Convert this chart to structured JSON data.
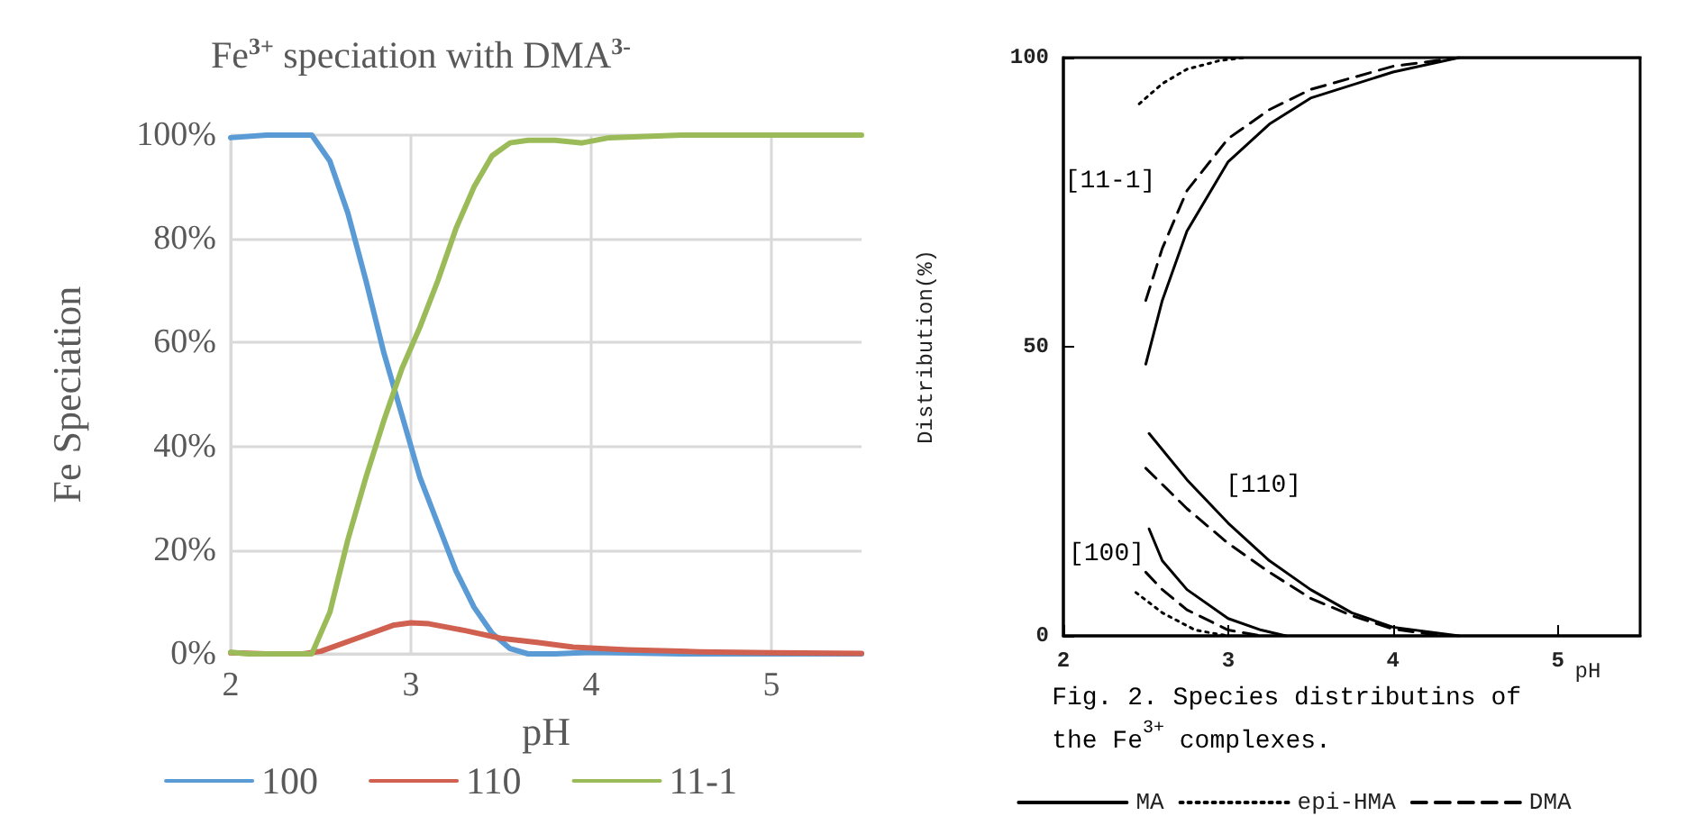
{
  "chart_data": [
    {
      "type": "line",
      "title": "Fe$^{3+}$ speciation with DMA$^{3-}$",
      "xlabel": "pH",
      "ylabel": "Fe Speciation",
      "xlim": [
        2,
        5.5
      ],
      "xticks": [
        2,
        3,
        4,
        5
      ],
      "ylim": [
        0,
        100
      ],
      "yticks": [
        {
          "value": 0,
          "label": "0%"
        },
        {
          "value": 20,
          "label": "20%"
        },
        {
          "value": 40,
          "label": "40%"
        },
        {
          "value": 60,
          "label": "60%"
        },
        {
          "value": 80,
          "label": "80%"
        },
        {
          "value": 100,
          "label": "100%"
        }
      ],
      "grid": true,
      "legend": "bottom",
      "marker": "none",
      "line_style": "solid",
      "series": [
        {
          "name": "100",
          "color": "#5b9bd5",
          "x": [
            2,
            2.2,
            2.45,
            2.55,
            2.65,
            2.75,
            2.85,
            2.95,
            3.05,
            3.15,
            3.25,
            3.35,
            3.45,
            3.55,
            3.65,
            3.8,
            4,
            4.5,
            5,
            5.5
          ],
          "values": [
            99.5,
            100,
            100,
            95,
            85,
            72,
            58,
            46,
            34,
            25,
            16,
            9,
            4,
            1,
            0,
            0,
            0.3,
            0,
            0,
            0
          ]
        },
        {
          "name": "110",
          "color": "#d0604f",
          "x": [
            2,
            2.2,
            2.4,
            2.5,
            2.7,
            2.9,
            3,
            3.1,
            3.3,
            3.5,
            3.7,
            3.9,
            4.2,
            4.6,
            5,
            5.5
          ],
          "values": [
            0.2,
            0,
            0,
            0.5,
            3,
            5.5,
            6,
            5.8,
            4.5,
            3,
            2.2,
            1.3,
            0.8,
            0.4,
            0.2,
            0.1
          ]
        },
        {
          "name": "11-1",
          "color": "#9bbb59",
          "x": [
            2,
            2.1,
            2.2,
            2.45,
            2.55,
            2.65,
            2.75,
            2.85,
            2.95,
            3.05,
            3.15,
            3.25,
            3.35,
            3.45,
            3.55,
            3.65,
            3.8,
            3.95,
            4.1,
            4.5,
            5,
            5.5
          ],
          "values": [
            0.3,
            0,
            0,
            0,
            8,
            22,
            34,
            45,
            55,
            63,
            72,
            82,
            90,
            96,
            98.5,
            99,
            99,
            98.5,
            99.5,
            100,
            100,
            100
          ]
        }
      ]
    },
    {
      "type": "line",
      "xlabel": "pH",
      "ylabel": "Distribution(%)",
      "xlim": [
        2,
        5.5
      ],
      "xticks": [
        2,
        3,
        4,
        5
      ],
      "ylim": [
        0,
        100
      ],
      "yticks": [
        0,
        50,
        100
      ],
      "grid": false,
      "legend": "bottom",
      "marker": "none",
      "annotations": [
        "[11-1]",
        "[110]",
        "[100]",
        "Fig. 2. Species distributins of the Fe$^{3+}$ complexes."
      ],
      "series": [
        {
          "name": "MA",
          "color": "#000000",
          "line_style": "solid",
          "x": [
            2.5,
            2.6,
            2.75,
            3,
            3.25,
            3.5,
            4,
            4.4,
            5.5
          ],
          "values": [
            47,
            58,
            70,
            82,
            88.5,
            93,
            97.5,
            100,
            100
          ]
        },
        {
          "name": "epi-HMA",
          "color": "#000000",
          "line_style": "dotted",
          "x": [
            2.46,
            2.6,
            2.75,
            2.95,
            3.1
          ],
          "values": [
            92,
            95.5,
            98,
            99.5,
            100
          ]
        },
        {
          "name": "DMA",
          "color": "#000000",
          "line_style": "dashed",
          "x": [
            2.5,
            2.6,
            2.75,
            3,
            3.25,
            3.5,
            4,
            4.4
          ],
          "values": [
            58,
            67,
            77,
            86,
            91,
            94.5,
            98.5,
            100
          ]
        },
        {
          "color": "#000000",
          "line_style": "solid",
          "x": [
            2.52,
            2.75,
            3,
            3.25,
            3.5,
            3.75,
            4,
            4.4
          ],
          "values": [
            35,
            27,
            19.5,
            13,
            8,
            4,
            1.5,
            0
          ]
        },
        {
          "color": "#000000",
          "line_style": "dashed",
          "x": [
            2.5,
            2.75,
            3,
            3.25,
            3.5,
            3.75,
            4,
            4.3
          ],
          "values": [
            29,
            22,
            16,
            11,
            6.5,
            3.5,
            1.2,
            0
          ]
        },
        {
          "color": "#000000",
          "line_style": "solid",
          "x": [
            2.52,
            2.6,
            2.75,
            3,
            3.2,
            3.35
          ],
          "values": [
            18.5,
            13,
            8,
            3,
            1,
            0
          ]
        },
        {
          "color": "#000000",
          "line_style": "dashed",
          "x": [
            2.5,
            2.6,
            2.75,
            3,
            3.2
          ],
          "values": [
            11,
            8,
            4.5,
            1,
            0
          ]
        },
        {
          "color": "#000000",
          "line_style": "dotted",
          "x": [
            2.44,
            2.6,
            2.8,
            3
          ],
          "values": [
            7.5,
            4,
            1,
            0
          ]
        }
      ]
    }
  ]
}
